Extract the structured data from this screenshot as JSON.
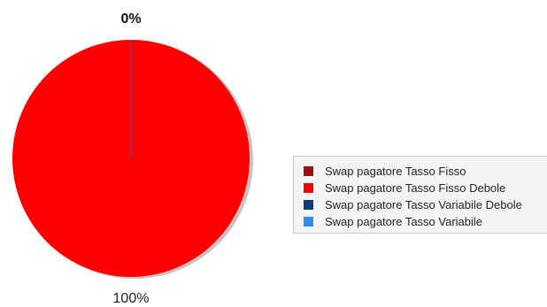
{
  "chart_data": {
    "type": "pie",
    "slices": [
      {
        "name": "Swap pagatore Tasso Fisso",
        "value": 0,
        "color": "#9b1010"
      },
      {
        "name": "Swap pagatore Tasso Fisso Debole",
        "value": 100,
        "color": "#ff0000"
      },
      {
        "name": "Swap pagatore Tasso Variabile Debole",
        "value": 0,
        "color": "#123c78"
      },
      {
        "name": "Swap pagatore Tasso Variabile",
        "value": 0,
        "color": "#2f8df0"
      }
    ],
    "data_labels": [
      "0%",
      "100%"
    ],
    "legend_placement": "right"
  }
}
